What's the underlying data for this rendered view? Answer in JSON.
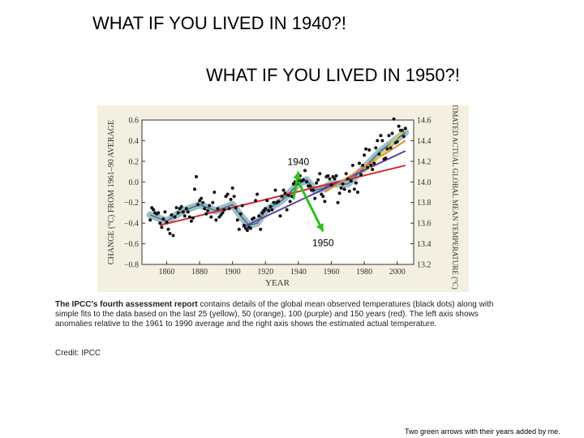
{
  "headline_1940": "WHAT IF YOU LIVED IN 1940?!",
  "headline_1950": "WHAT IF YOU LIVED IN 1950?!",
  "caption": {
    "bold": "The IPCC's fourth assessment report",
    "text": " contains details of the global mean observed temperatures (black dots) along with simple fits to the data based on the last 25 (yellow), 50 (orange), 100 (purple) and 150 years (red). The left axis shows anomalies relative to the 1961 to 1990 average and the right axis shows the estimated actual temperature."
  },
  "credit": "Credit: IPCC",
  "footnote": "Two green arrows with their years added by me.",
  "chart_data": {
    "type": "scatter",
    "xlabel": "YEAR",
    "ylabel": "CHANGE (°C) FROM 1961–90 AVERAGE",
    "y2label": "ESTIMATED ACTUAL GLOBAL MEAN TEMPERATURE (°C)",
    "xlim": [
      1845,
      2010
    ],
    "ylim": [
      -0.8,
      0.6
    ],
    "y2lim": [
      13.2,
      14.6
    ],
    "x_ticks": [
      1860,
      1880,
      1900,
      1920,
      1940,
      1960,
      1980,
      2000
    ],
    "y_ticks": [
      "0.6",
      "0.4",
      "0.2",
      "0.0",
      "−0.2",
      "−0.4",
      "−0.6",
      "−0.8"
    ],
    "y2_ticks": [
      "14.6",
      "14.4",
      "14.2",
      "14.0",
      "13.8",
      "13.6",
      "13.4",
      "13.2"
    ],
    "grid": false,
    "colors": {
      "dots": "#111111",
      "band": "#7fa8b4",
      "red": "#d62a2a",
      "purple": "#5b3fa5",
      "orange": "#e8872a",
      "yellow": "#f2d33a",
      "arrow": "#2fbf1f",
      "panel": "#f4f0e1"
    },
    "observations": {
      "x": [
        1850,
        1851,
        1852,
        1853,
        1854,
        1855,
        1856,
        1857,
        1858,
        1859,
        1860,
        1861,
        1862,
        1863,
        1864,
        1865,
        1866,
        1867,
        1868,
        1869,
        1870,
        1871,
        1872,
        1873,
        1874,
        1875,
        1876,
        1877,
        1878,
        1879,
        1880,
        1881,
        1882,
        1883,
        1884,
        1885,
        1886,
        1887,
        1888,
        1889,
        1890,
        1891,
        1892,
        1893,
        1894,
        1895,
        1896,
        1897,
        1898,
        1899,
        1900,
        1901,
        1902,
        1903,
        1904,
        1905,
        1906,
        1907,
        1908,
        1909,
        1910,
        1911,
        1912,
        1913,
        1914,
        1915,
        1916,
        1917,
        1918,
        1919,
        1920,
        1921,
        1922,
        1923,
        1924,
        1925,
        1926,
        1927,
        1928,
        1929,
        1930,
        1931,
        1932,
        1933,
        1934,
        1935,
        1936,
        1937,
        1938,
        1939,
        1940,
        1941,
        1942,
        1943,
        1944,
        1945,
        1946,
        1947,
        1948,
        1949,
        1950,
        1951,
        1952,
        1953,
        1954,
        1955,
        1956,
        1957,
        1958,
        1959,
        1960,
        1961,
        1962,
        1963,
        1964,
        1965,
        1966,
        1967,
        1968,
        1969,
        1970,
        1971,
        1972,
        1973,
        1974,
        1975,
        1976,
        1977,
        1978,
        1979,
        1980,
        1981,
        1982,
        1983,
        1984,
        1985,
        1986,
        1987,
        1988,
        1989,
        1990,
        1991,
        1992,
        1993,
        1994,
        1995,
        1996,
        1997,
        1998,
        1999,
        2000,
        2001,
        2002,
        2003,
        2004,
        2005
      ],
      "y": [
        -0.37,
        -0.25,
        -0.27,
        -0.3,
        -0.31,
        -0.3,
        -0.4,
        -0.44,
        -0.36,
        -0.29,
        -0.39,
        -0.46,
        -0.5,
        -0.32,
        -0.52,
        -0.34,
        -0.25,
        -0.3,
        -0.26,
        -0.24,
        -0.29,
        -0.33,
        -0.26,
        -0.29,
        -0.34,
        -0.38,
        -0.35,
        -0.07,
        0.05,
        -0.22,
        -0.18,
        -0.16,
        -0.2,
        -0.26,
        -0.31,
        -0.28,
        -0.23,
        -0.34,
        -0.2,
        -0.1,
        -0.37,
        -0.26,
        -0.34,
        -0.32,
        -0.3,
        -0.27,
        -0.14,
        -0.12,
        -0.26,
        -0.17,
        -0.06,
        -0.14,
        -0.25,
        -0.37,
        -0.46,
        -0.31,
        -0.23,
        -0.42,
        -0.45,
        -0.47,
        -0.44,
        -0.45,
        -0.36,
        -0.35,
        -0.18,
        -0.12,
        -0.33,
        -0.46,
        -0.3,
        -0.28,
        -0.26,
        -0.18,
        -0.28,
        -0.24,
        -0.27,
        -0.2,
        -0.08,
        -0.2,
        -0.19,
        -0.33,
        -0.14,
        -0.08,
        -0.11,
        -0.27,
        -0.13,
        -0.19,
        -0.14,
        -0.02,
        -0.0,
        -0.02,
        0.01,
        0.06,
        0.01,
        0.02,
        0.11,
        0.0,
        -0.04,
        -0.04,
        -0.08,
        -0.08,
        -0.16,
        -0.01,
        0.02,
        0.08,
        -0.12,
        -0.14,
        -0.19,
        0.05,
        0.06,
        0.03,
        -0.03,
        0.05,
        0.03,
        0.06,
        -0.2,
        -0.11,
        -0.06,
        -0.02,
        -0.07,
        0.08,
        0.03,
        -0.09,
        0.01,
        0.16,
        -0.07,
        -0.01,
        -0.1,
        0.18,
        0.07,
        0.16,
        0.26,
        0.32,
        0.14,
        0.31,
        0.16,
        0.12,
        0.18,
        0.33,
        0.4,
        0.27,
        0.45,
        0.4,
        0.22,
        0.23,
        0.32,
        0.45,
        0.33,
        0.47,
        0.61,
        0.38,
        0.39,
        0.54,
        0.5,
        0.5,
        0.44,
        0.52
      ]
    },
    "smoothed": {
      "x": [
        1850,
        1860,
        1870,
        1880,
        1890,
        1900,
        1905,
        1910,
        1915,
        1920,
        1930,
        1940,
        1945,
        1950,
        1955,
        1960,
        1970,
        1980,
        1990,
        2000,
        2005
      ],
      "y": [
        -0.32,
        -0.38,
        -0.28,
        -0.22,
        -0.28,
        -0.22,
        -0.33,
        -0.42,
        -0.4,
        -0.28,
        -0.18,
        -0.02,
        0.02,
        -0.08,
        -0.06,
        -0.02,
        -0.02,
        0.14,
        0.3,
        0.42,
        0.48
      ]
    },
    "fits": [
      {
        "years": 150,
        "color": "#d62a2a",
        "x": [
          1856,
          2005
        ],
        "y": [
          -0.42,
          0.16
        ]
      },
      {
        "years": 100,
        "color": "#5b3fa5",
        "x": [
          1906,
          2005
        ],
        "y": [
          -0.44,
          0.3
        ]
      },
      {
        "years": 50,
        "color": "#e8872a",
        "x": [
          1956,
          2005
        ],
        "y": [
          -0.1,
          0.4
        ]
      },
      {
        "years": 25,
        "color": "#f2d33a",
        "x": [
          1981,
          2005
        ],
        "y": [
          0.1,
          0.52
        ]
      }
    ],
    "annotations": [
      {
        "label": "1940",
        "from": [
          1937,
          -0.17
        ],
        "to": [
          1940,
          0.1
        ]
      },
      {
        "label": "1950",
        "from": [
          1940,
          0.0
        ],
        "to": [
          1955,
          -0.48
        ]
      }
    ]
  }
}
